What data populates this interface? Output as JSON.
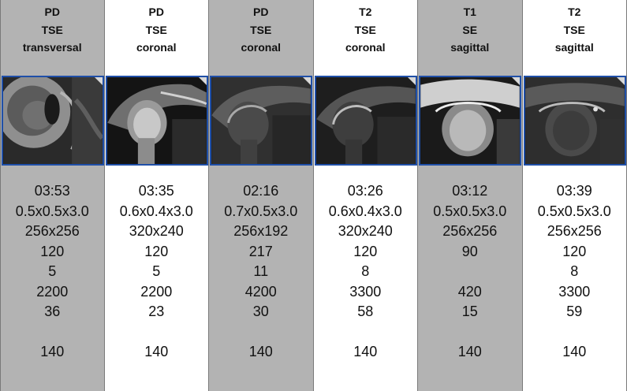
{
  "columns": [
    {
      "weighting": "PD",
      "sequence": "TSE",
      "plane": "transversal",
      "shaded": true,
      "time": "03:53",
      "voxel": "0.5x0.5x3.0",
      "matrix": "256x256",
      "p4": "120",
      "p5": "5",
      "p6": "2200",
      "p7": "36",
      "p8": "",
      "p9": "140",
      "image_icon": "mri-shoulder-transversal-thumbnail"
    },
    {
      "weighting": "PD",
      "sequence": "TSE",
      "plane": "coronal",
      "shaded": false,
      "time": "03:35",
      "voxel": "0.6x0.4x3.0",
      "matrix": "320x240",
      "p4": "120",
      "p5": "5",
      "p6": "2200",
      "p7": "23",
      "p8": "",
      "p9": "140",
      "image_icon": "mri-shoulder-coronal-thumbnail"
    },
    {
      "weighting": "PD",
      "sequence": "TSE",
      "plane": "coronal",
      "shaded": true,
      "time": "02:16",
      "voxel": "0.7x0.5x3.0",
      "matrix": "256x192",
      "p4": "217",
      "p5": "11",
      "p6": "4200",
      "p7": "30",
      "p8": "",
      "p9": "140",
      "image_icon": "mri-shoulder-coronal-thumbnail"
    },
    {
      "weighting": "T2",
      "sequence": "TSE",
      "plane": "coronal",
      "shaded": false,
      "time": "03:26",
      "voxel": "0.6x0.4x3.0",
      "matrix": "320x240",
      "p4": "120",
      "p5": "8",
      "p6": "3300",
      "p7": "58",
      "p8": "",
      "p9": "140",
      "image_icon": "mri-shoulder-coronal-thumbnail"
    },
    {
      "weighting": "T1",
      "sequence": "SE",
      "plane": "sagittal",
      "shaded": true,
      "time": "03:12",
      "voxel": "0.5x0.5x3.0",
      "matrix": "256x256",
      "p4": "90",
      "p5": "",
      "p6": "420",
      "p7": "15",
      "p8": "",
      "p9": "140",
      "image_icon": "mri-shoulder-sagittal-thumbnail"
    },
    {
      "weighting": "T2",
      "sequence": "TSE",
      "plane": "sagittal",
      "shaded": false,
      "time": "03:39",
      "voxel": "0.5x0.5x3.0",
      "matrix": "256x256",
      "p4": "120",
      "p5": "8",
      "p6": "3300",
      "p7": "59",
      "p8": "",
      "p9": "140",
      "image_icon": "mri-shoulder-sagittal-thumbnail"
    }
  ],
  "colors": {
    "shaded_column": "#b3b3b3",
    "thumbnail_border": "#1f4fa8"
  }
}
